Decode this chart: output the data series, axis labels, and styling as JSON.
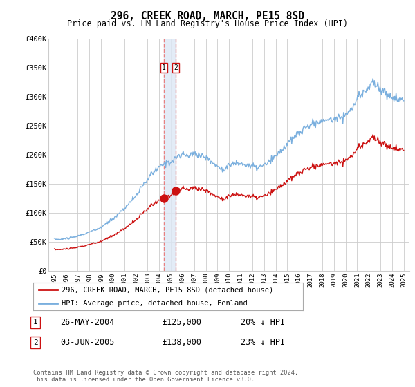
{
  "title": "296, CREEK ROAD, MARCH, PE15 8SD",
  "subtitle": "Price paid vs. HM Land Registry's House Price Index (HPI)",
  "legend_entry1": "296, CREEK ROAD, MARCH, PE15 8SD (detached house)",
  "legend_entry2": "HPI: Average price, detached house, Fenland",
  "sale1_label": "1",
  "sale1_date": "26-MAY-2004",
  "sale1_price": "£125,000",
  "sale1_hpi": "20% ↓ HPI",
  "sale2_label": "2",
  "sale2_date": "03-JUN-2005",
  "sale2_price": "£138,000",
  "sale2_hpi": "23% ↓ HPI",
  "sale1_x": 2004.4,
  "sale1_y": 125000,
  "sale2_x": 2005.42,
  "sale2_y": 138000,
  "hpi_color": "#7aafde",
  "sale_color": "#cc1111",
  "dashed_color": "#e88080",
  "shade_color": "#dde8f5",
  "footer": "Contains HM Land Registry data © Crown copyright and database right 2024.\nThis data is licensed under the Open Government Licence v3.0.",
  "ylim": [
    0,
    400000
  ],
  "yticks": [
    0,
    50000,
    100000,
    150000,
    200000,
    250000,
    300000,
    350000,
    400000
  ],
  "ytick_labels": [
    "£0",
    "£50K",
    "£100K",
    "£150K",
    "£200K",
    "£250K",
    "£300K",
    "£350K",
    "£400K"
  ],
  "xlim_start": 1994.5,
  "xlim_end": 2025.5,
  "background_color": "#ffffff",
  "grid_color": "#cccccc"
}
